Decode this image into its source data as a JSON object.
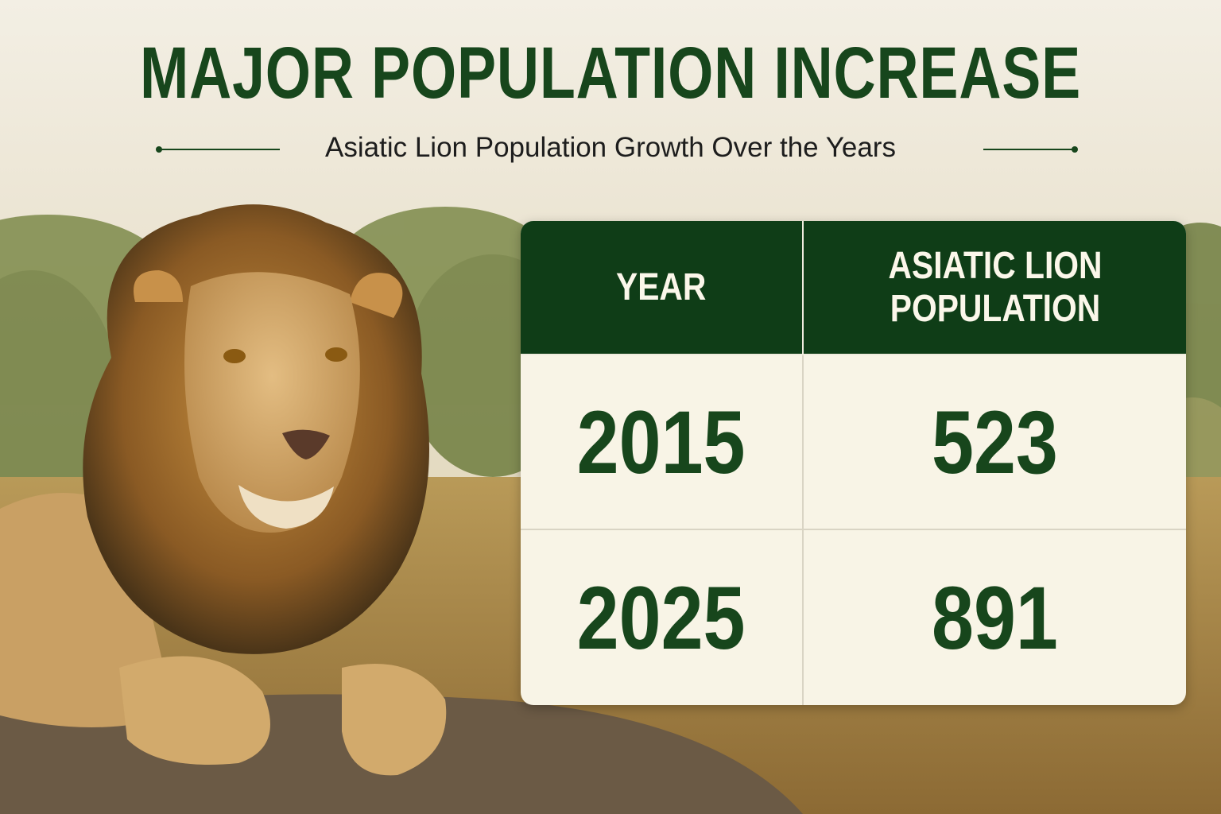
{
  "header": {
    "title": "MAJOR POPULATION INCREASE",
    "subtitle": "Asiatic Lion Population Growth Over the Years"
  },
  "table": {
    "columns": [
      "YEAR",
      "ASIATIC LION POPULATION"
    ],
    "rows": [
      [
        2015,
        523
      ],
      [
        2025,
        891
      ]
    ]
  }
}
